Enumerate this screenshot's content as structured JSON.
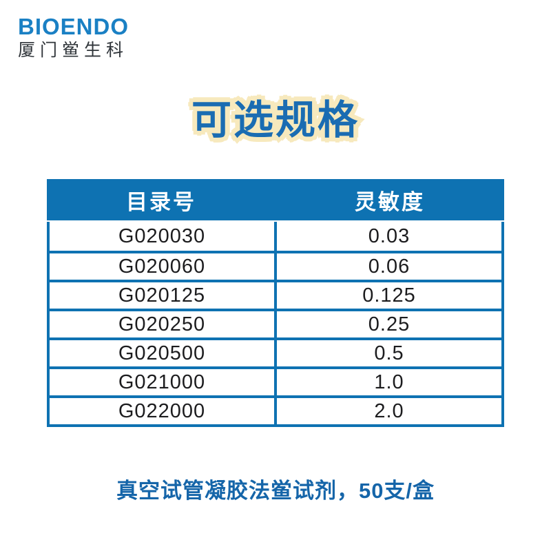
{
  "brand": {
    "name": "BIOENDO",
    "subtitle": "厦门鲎生科"
  },
  "title": "可选规格",
  "table": {
    "headers": [
      "目录号",
      "灵敏度"
    ],
    "rows": [
      {
        "catalog": "G020030",
        "sensitivity": "0.03"
      },
      {
        "catalog": "G020060",
        "sensitivity": "0.06"
      },
      {
        "catalog": "G020125",
        "sensitivity": "0.125"
      },
      {
        "catalog": "G020250",
        "sensitivity": "0.25"
      },
      {
        "catalog": "G020500",
        "sensitivity": "0.5"
      },
      {
        "catalog": "G021000",
        "sensitivity": "1.0"
      },
      {
        "catalog": "G022000",
        "sensitivity": "2.0"
      }
    ]
  },
  "caption": "真空试管凝胶法鲎试剂，50支/盒",
  "colors": {
    "table_blue": "#0e72b2",
    "logo_blue": "#1a80c4",
    "logo_subtext": "#30353a",
    "title_blue": "#1a6cb2",
    "title_outline_cream": "#f7e9bd",
    "caption_blue": "#1565a9",
    "cell_text": "#1c1c1e",
    "background": "#ffffff"
  }
}
